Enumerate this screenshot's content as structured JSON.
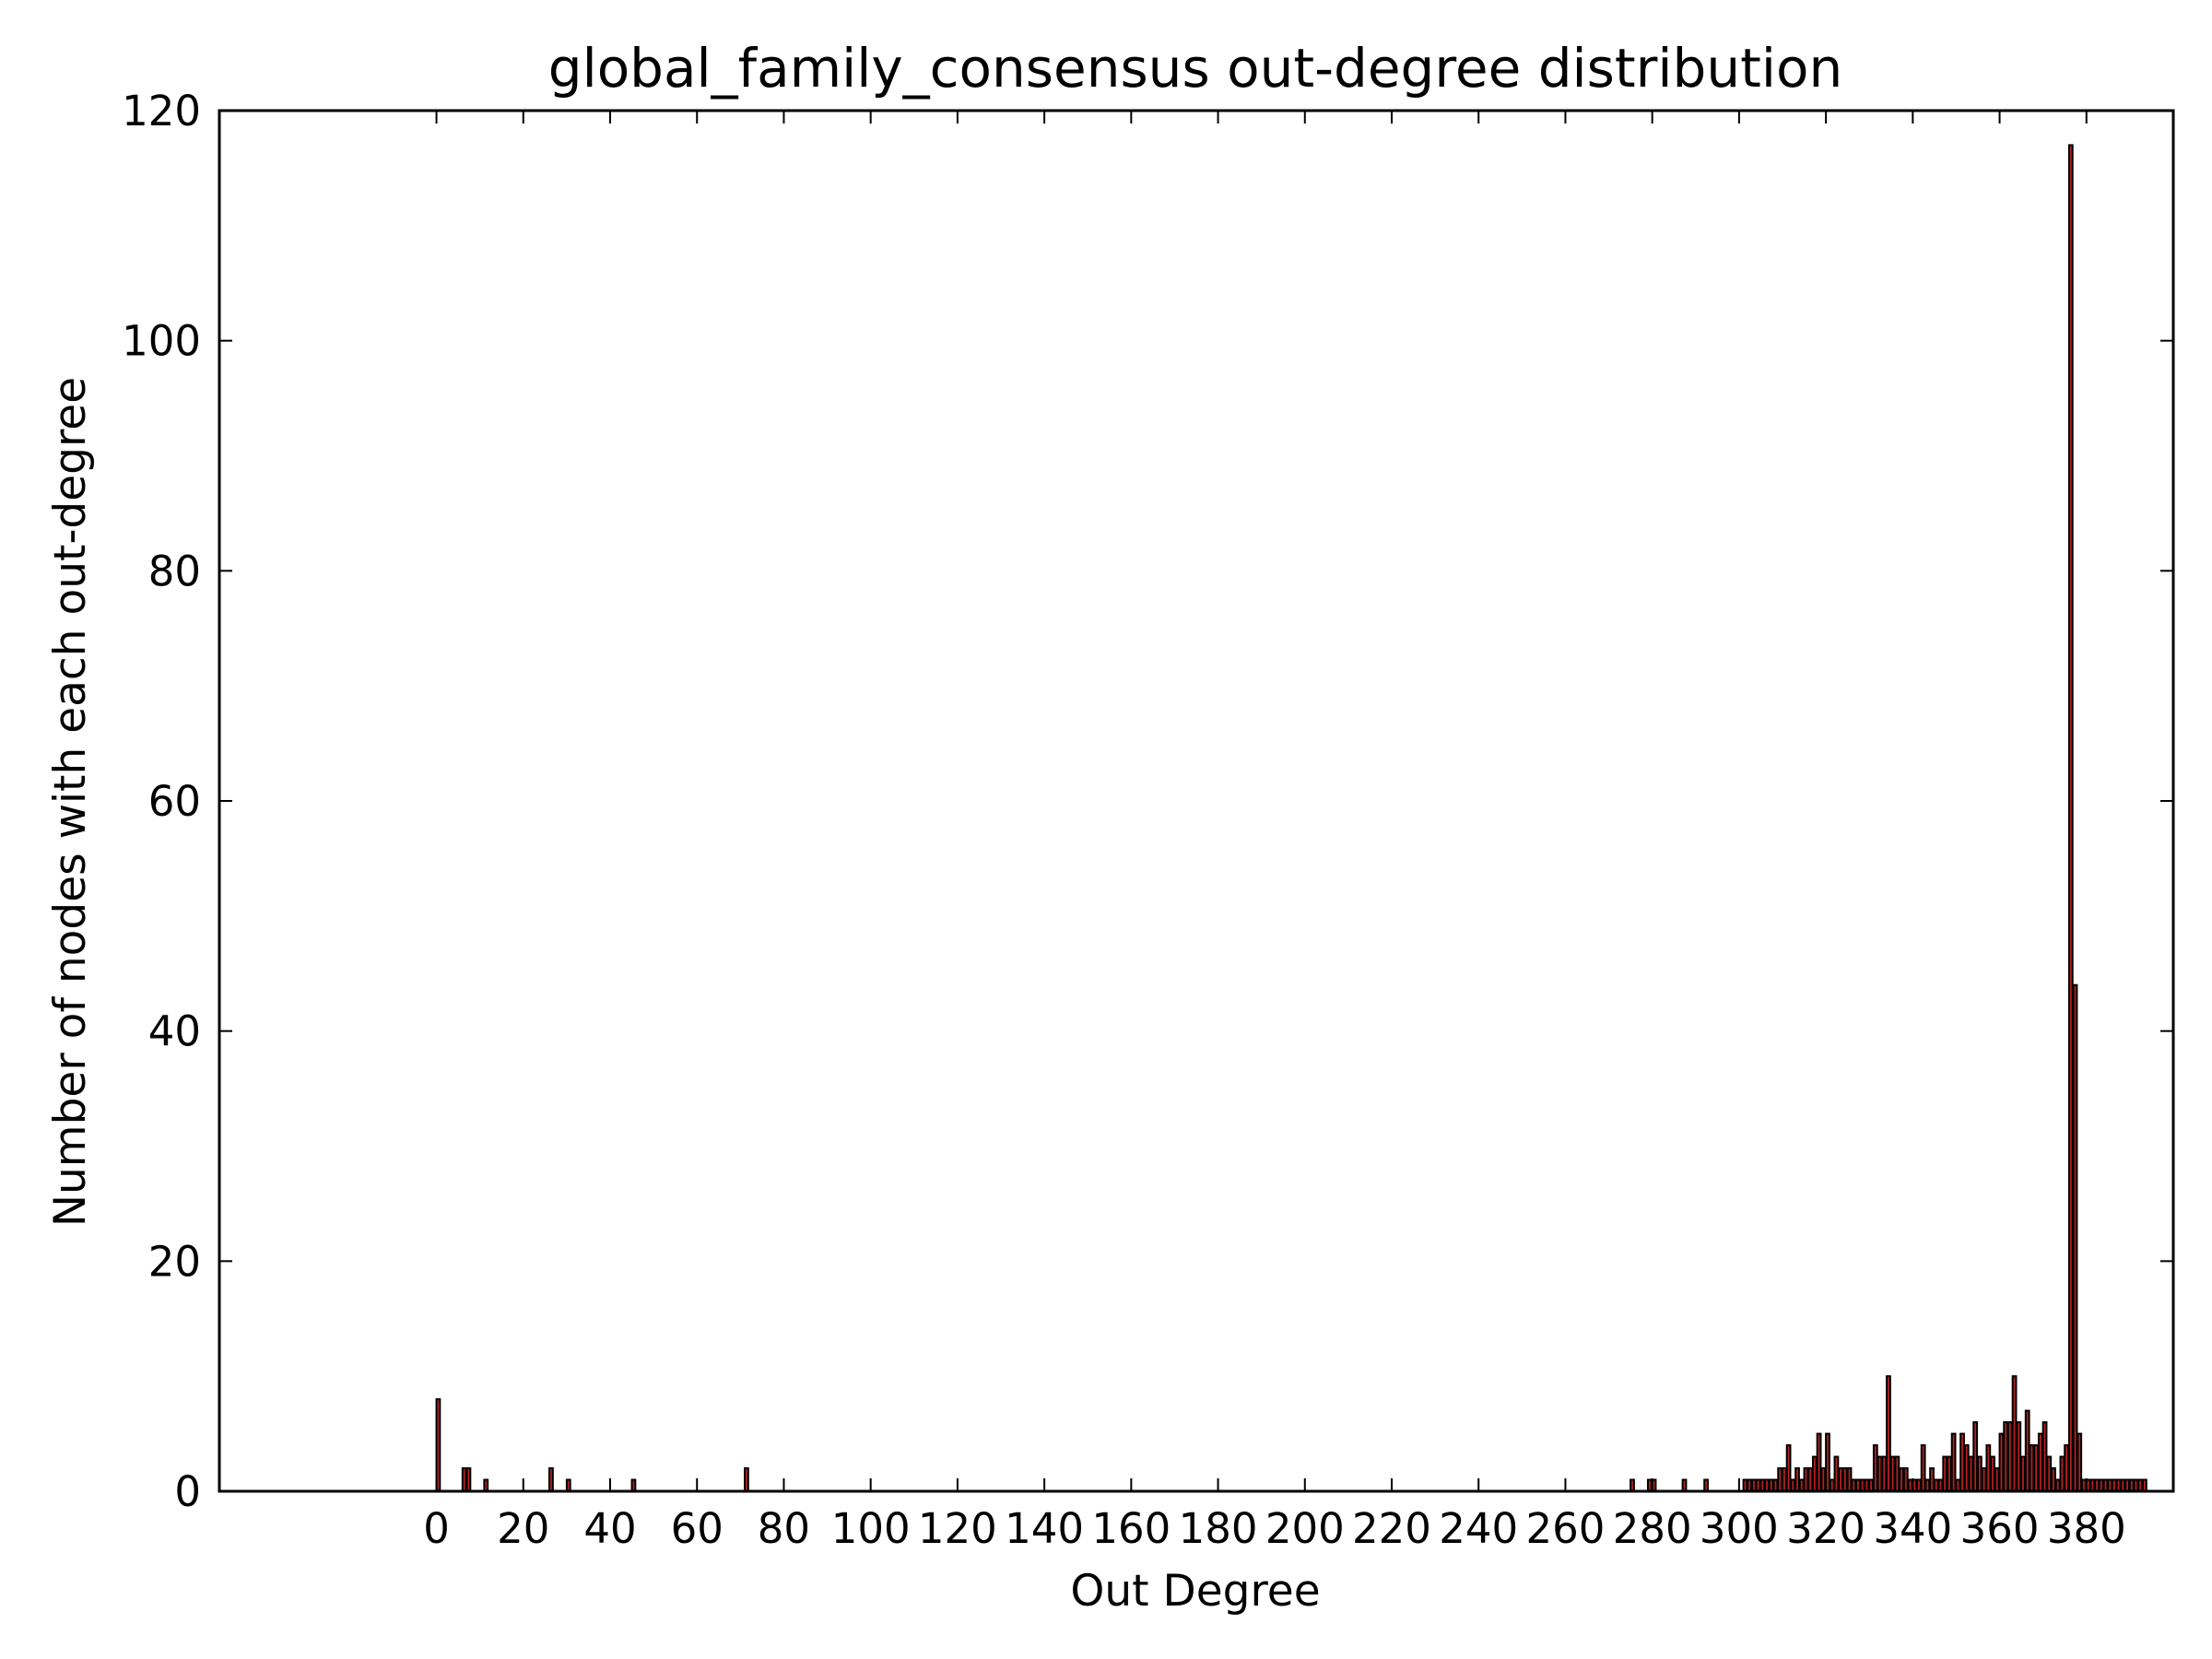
{
  "chart_data": {
    "type": "bar",
    "title": "global_family_consensus out-degree distribution",
    "xlabel": "Out Degree",
    "ylabel": "Number of nodes with each out-degree",
    "xlim": [
      -50,
      400
    ],
    "ylim": [
      0,
      120
    ],
    "x_ticks": [
      0,
      20,
      40,
      60,
      80,
      100,
      120,
      140,
      160,
      180,
      200,
      220,
      240,
      260,
      280,
      300,
      320,
      340,
      360,
      380
    ],
    "y_ticks": [
      0,
      20,
      40,
      60,
      80,
      100,
      120
    ],
    "grid": false,
    "bar_fill_color": "#b22222",
    "bar_edge_color": "#000000",
    "series": [
      {
        "x": [
          0,
          6,
          7,
          11,
          26,
          30,
          45,
          71,
          275,
          279,
          280,
          287,
          292,
          301,
          302,
          303,
          304,
          305,
          306,
          307,
          308,
          309,
          310,
          311,
          312,
          313,
          314,
          315,
          316,
          317,
          318,
          319,
          320,
          321,
          322,
          323,
          324,
          325,
          326,
          327,
          328,
          329,
          330,
          331,
          332,
          333,
          334,
          335,
          336,
          337,
          338,
          339,
          340,
          341,
          342,
          343,
          344,
          345,
          346,
          347,
          348,
          349,
          350,
          351,
          352,
          353,
          354,
          355,
          356,
          357,
          358,
          359,
          360,
          361,
          362,
          363,
          364,
          365,
          366,
          367,
          368,
          369,
          370,
          371,
          372,
          373,
          374,
          375,
          376,
          377,
          378,
          379,
          380,
          381,
          382,
          383,
          384,
          385,
          386,
          387,
          388,
          389,
          390,
          391,
          392,
          393
        ],
        "values": [
          8,
          2,
          2,
          1,
          2,
          1,
          1,
          2,
          1,
          1,
          1,
          1,
          1,
          1,
          1,
          1,
          1,
          1,
          1,
          1,
          1,
          2,
          2,
          4,
          1,
          2,
          1,
          2,
          2,
          3,
          5,
          2,
          5,
          1,
          3,
          2,
          2,
          2,
          1,
          1,
          1,
          1,
          1,
          4,
          3,
          3,
          10,
          3,
          3,
          2,
          2,
          1,
          1,
          1,
          4,
          1,
          2,
          1,
          1,
          3,
          3,
          5,
          1,
          5,
          4,
          3,
          6,
          3,
          2,
          4,
          3,
          2,
          5,
          6,
          6,
          10,
          6,
          3,
          7,
          4,
          4,
          5,
          6,
          3,
          2,
          1,
          3,
          4,
          117,
          44,
          5,
          1,
          1,
          1,
          1,
          1,
          1,
          1,
          1,
          1,
          1,
          1,
          1,
          1,
          1,
          1
        ]
      }
    ]
  }
}
